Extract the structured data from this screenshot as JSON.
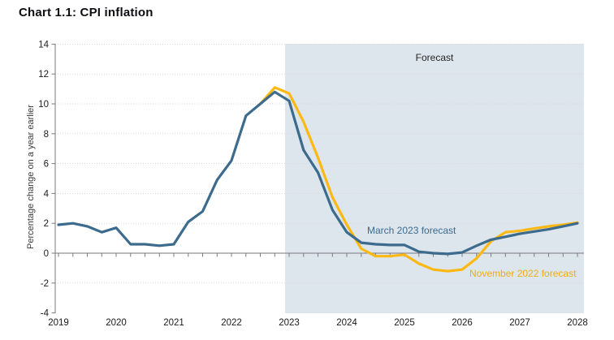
{
  "title": "Chart 1.1: CPI inflation",
  "chart_data": {
    "type": "line",
    "title": "Chart 1.1: CPI inflation",
    "xlabel": "",
    "ylabel": "Percentage change on a year earlier",
    "ylim": [
      -4,
      14
    ],
    "ytick_step": 2,
    "xtick_years": [
      2019,
      2020,
      2021,
      2022,
      2023,
      2024,
      2025,
      2026,
      2027,
      2028
    ],
    "xlim": [
      2018.94,
      2028.11
    ],
    "grid": "horizontal-dotted",
    "legend_position": "inline-annotations",
    "forecast_region": {
      "label": "Forecast",
      "start": 2022.93,
      "end": 2028.11,
      "fill": "#dde5ed"
    },
    "x_unit": "year-quarterly",
    "series": [
      {
        "name": "November 2022 forecast",
        "color": "#fcb813",
        "label_color": "#f0ac17",
        "x_start": 2022.5,
        "x_step": 0.25,
        "values": [
          10.0,
          11.1,
          10.7,
          8.8,
          6.4,
          3.75,
          1.9,
          0.3,
          -0.2,
          -0.2,
          -0.1,
          -0.7,
          -1.1,
          -1.2,
          -1.1,
          -0.35,
          0.8,
          1.4,
          1.5,
          1.65,
          1.8,
          1.9,
          2.05
        ]
      },
      {
        "name": "March 2023 forecast",
        "color": "#3c6b8d",
        "label_color": "#3c6b8d",
        "x_start": 2019.0,
        "x_step": 0.25,
        "values": [
          1.9,
          2.0,
          1.8,
          1.4,
          1.7,
          0.6,
          0.6,
          0.5,
          0.6,
          2.1,
          2.8,
          4.9,
          6.2,
          9.2,
          10.0,
          10.8,
          10.2,
          6.9,
          5.4,
          2.9,
          1.4,
          0.7,
          0.6,
          0.55,
          0.55,
          0.1,
          0.0,
          -0.05,
          0.05,
          0.5,
          0.9,
          1.1,
          1.3,
          1.45,
          1.6,
          1.8,
          2.0
        ]
      }
    ],
    "colors": {
      "axis": "#7a7a7a",
      "gridline": "#d9d9d9",
      "tick_label": "#1a1a1a",
      "forecast_fill": "#dde5ed"
    }
  }
}
